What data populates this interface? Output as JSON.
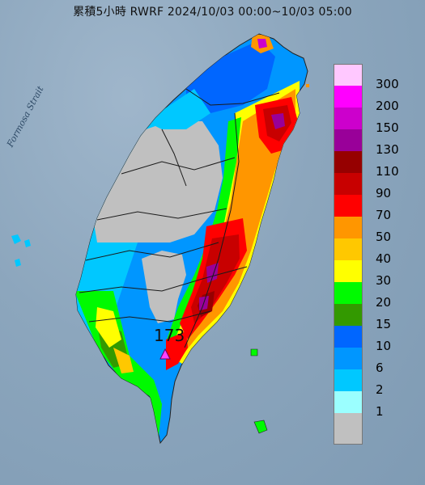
{
  "title": "累積5小時 RWRF 2024/10/03 00:00~10/03 05:00",
  "strait_label": "Formosa Strait",
  "peak_value": "173",
  "legend": {
    "items": [
      {
        "label": "300",
        "color": "#ffc8ff"
      },
      {
        "label": "200",
        "color": "#ff00ff"
      },
      {
        "label": "150",
        "color": "#cc00cc"
      },
      {
        "label": "130",
        "color": "#990099"
      },
      {
        "label": "110",
        "color": "#960000"
      },
      {
        "label": "90",
        "color": "#c80000"
      },
      {
        "label": "70",
        "color": "#ff0000"
      },
      {
        "label": "50",
        "color": "#ff9600"
      },
      {
        "label": "40",
        "color": "#ffc800"
      },
      {
        "label": "30",
        "color": "#ffff00"
      },
      {
        "label": "20",
        "color": "#00fa00"
      },
      {
        "label": "15",
        "color": "#339900"
      },
      {
        "label": "10",
        "color": "#0066ff"
      },
      {
        "label": "6",
        "color": "#0096ff"
      },
      {
        "label": "2",
        "color": "#00c8ff"
      },
      {
        "label": "1",
        "color": "#9bffff"
      },
      {
        "label": "",
        "color": "#c0c0c0"
      }
    ]
  }
}
